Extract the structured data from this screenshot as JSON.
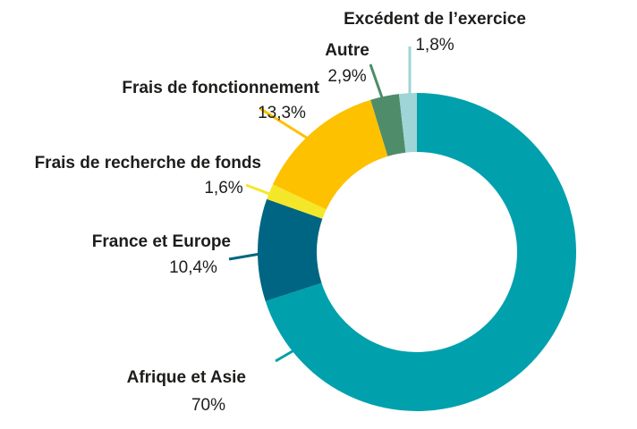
{
  "chart_data": {
    "type": "pie",
    "donut": true,
    "title": "",
    "slices": [
      {
        "label": "Afrique et Asie",
        "value": 70,
        "value_label": "70%",
        "color": "#00a0ad"
      },
      {
        "label": "France et Europe",
        "value": 10.4,
        "value_label": "10,4%",
        "color": "#006582"
      },
      {
        "label": "Frais de recherche de fonds",
        "value": 1.6,
        "value_label": "1,6%",
        "color": "#f4e72a"
      },
      {
        "label": "Frais de fonctionnement",
        "value": 13.3,
        "value_label": "13,3%",
        "color": "#fdc100"
      },
      {
        "label": "Autre",
        "value": 2.9,
        "value_label": "2,9%",
        "color": "#4f8c6a"
      },
      {
        "label": "Excédent de l’exercice",
        "value": 1.8,
        "value_label": "1,8%",
        "color": "#9fd5d6"
      }
    ],
    "start_angle_deg": 0,
    "direction": "clockwise"
  }
}
